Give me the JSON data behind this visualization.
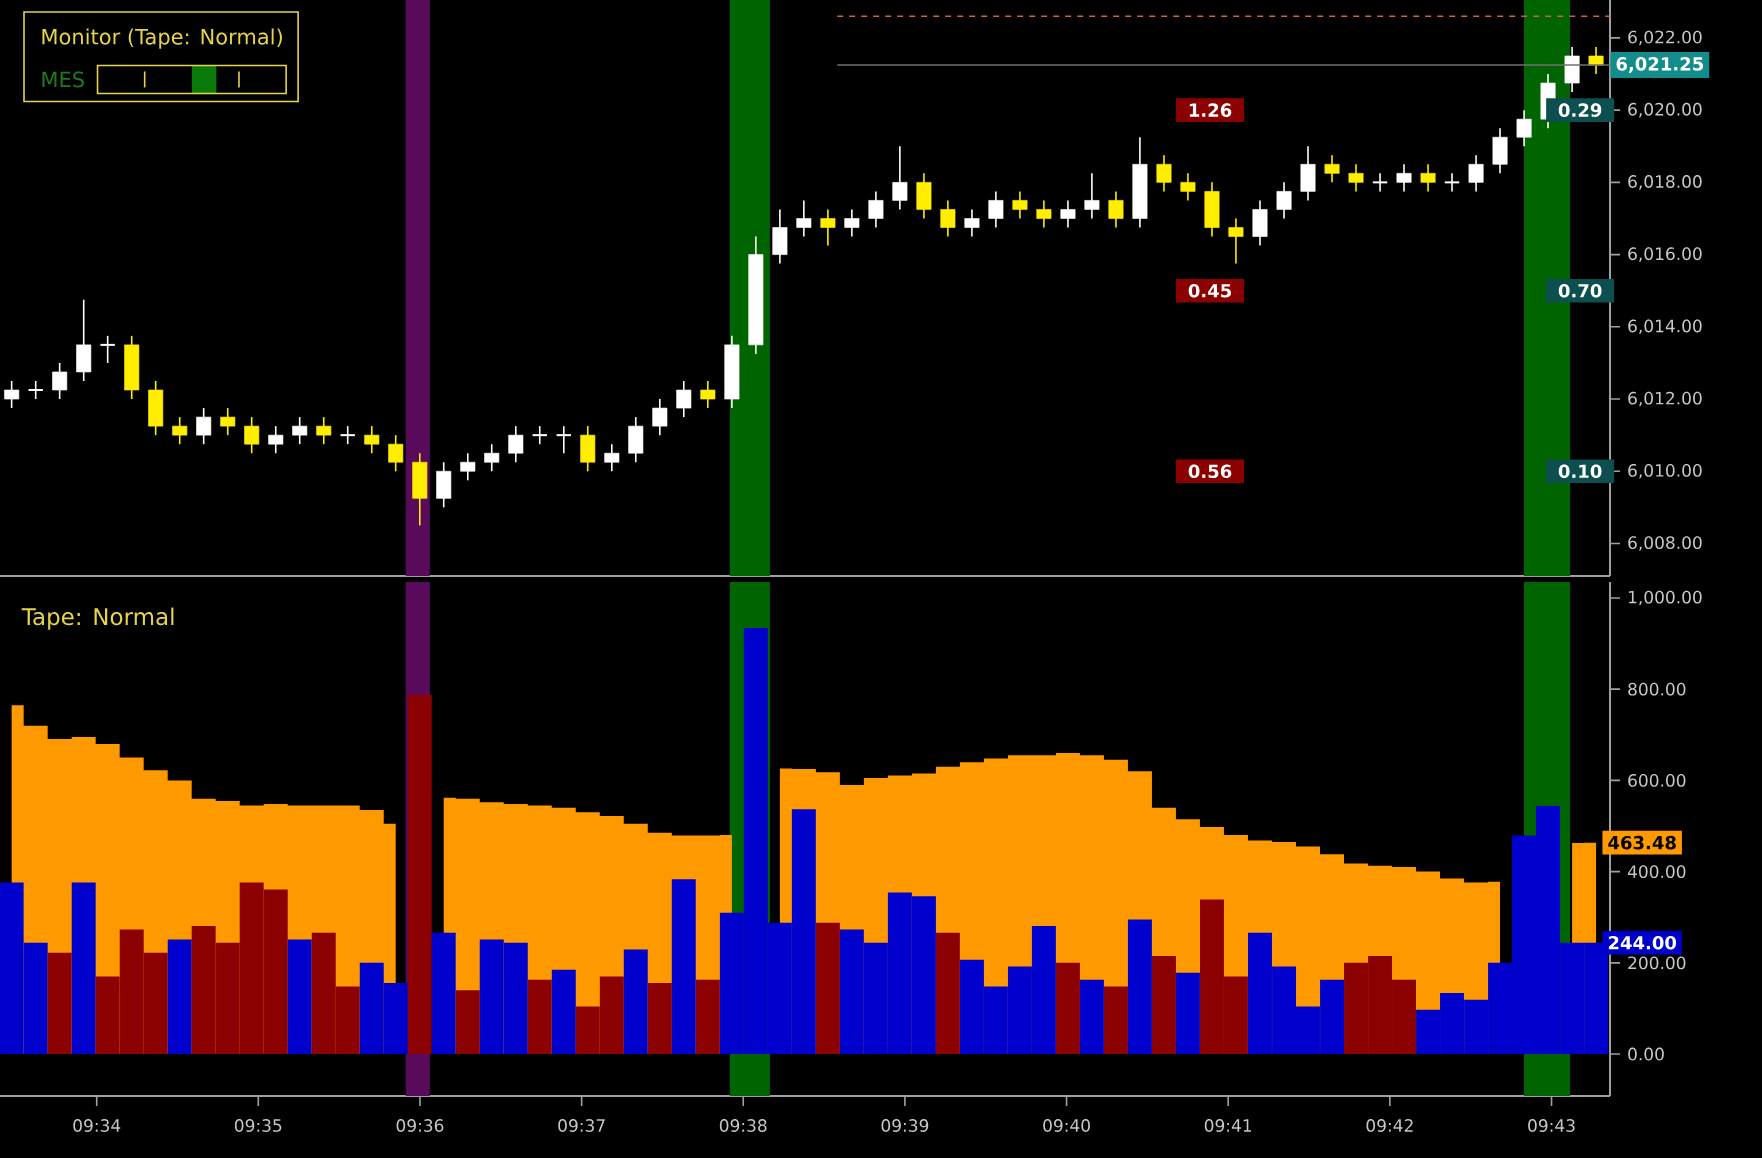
{
  "chart_data": [
    {
      "type": "candlestick",
      "title": "Monitor (Tape: Normal)",
      "x": [
        9.5579,
        9.56038,
        9.56285,
        9.56533,
        9.5678,
        9.57028,
        9.57275,
        9.57523,
        9.5777,
        9.58018,
        9.58265,
        9.58513,
        9.5876,
        9.59008,
        9.59255,
        9.59503,
        9.5975,
        9.59998,
        9.60245,
        9.60493,
        9.6074,
        9.60988,
        9.61235,
        9.61483,
        9.6173,
        9.61978,
        9.62225,
        9.62473,
        9.6272,
        9.62968,
        9.63216,
        9.63463,
        9.63711,
        9.63958,
        9.64206,
        9.64453,
        9.64701,
        9.64948,
        9.65196,
        9.65443,
        9.65691,
        9.65938,
        9.66186,
        9.66433,
        9.66681,
        9.66928,
        9.67176,
        9.67423,
        9.67671,
        9.67918,
        9.68166,
        9.68413,
        9.68661,
        9.68909,
        9.69156,
        9.69404,
        9.69651,
        9.69899,
        9.70146,
        9.70394,
        9.70641,
        9.70889,
        9.71136,
        9.71384,
        9.71631,
        9.71879,
        9.72126
      ],
      "ohlc": [
        [
          6012.0,
          6012.5,
          6011.75,
          6012.25
        ],
        [
          6012.25,
          6012.5,
          6012.0,
          6012.25
        ],
        [
          6012.25,
          6013.0,
          6012.0,
          6012.75
        ],
        [
          6012.75,
          6014.75,
          6012.5,
          6013.5
        ],
        [
          6013.5,
          6013.75,
          6013.0,
          6013.5
        ],
        [
          6013.5,
          6013.75,
          6012.0,
          6012.25
        ],
        [
          6012.25,
          6012.5,
          6011.0,
          6011.25
        ],
        [
          6011.25,
          6011.5,
          6010.75,
          6011.0
        ],
        [
          6011.0,
          6011.75,
          6010.75,
          6011.5
        ],
        [
          6011.5,
          6011.75,
          6011.0,
          6011.25
        ],
        [
          6011.25,
          6011.5,
          6010.5,
          6010.75
        ],
        [
          6010.75,
          6011.25,
          6010.5,
          6011.0
        ],
        [
          6011.0,
          6011.5,
          6010.75,
          6011.25
        ],
        [
          6011.25,
          6011.5,
          6010.75,
          6011.0
        ],
        [
          6011.0,
          6011.25,
          6010.75,
          6011.0
        ],
        [
          6011.0,
          6011.25,
          6010.5,
          6010.75
        ],
        [
          6010.75,
          6011.0,
          6010.0,
          6010.25
        ],
        [
          6010.25,
          6010.5,
          6008.5,
          6009.25
        ],
        [
          6009.25,
          6010.25,
          6009.0,
          6010.0
        ],
        [
          6010.0,
          6010.5,
          6009.75,
          6010.25
        ],
        [
          6010.25,
          6010.75,
          6010.0,
          6010.5
        ],
        [
          6010.5,
          6011.25,
          6010.25,
          6011.0
        ],
        [
          6011.0,
          6011.25,
          6010.75,
          6011.0
        ],
        [
          6011.0,
          6011.25,
          6010.5,
          6011.0
        ],
        [
          6011.0,
          6011.25,
          6010.0,
          6010.25
        ],
        [
          6010.25,
          6010.75,
          6010.0,
          6010.5
        ],
        [
          6010.5,
          6011.5,
          6010.25,
          6011.25
        ],
        [
          6011.25,
          6012.0,
          6011.0,
          6011.75
        ],
        [
          6011.75,
          6012.5,
          6011.5,
          6012.25
        ],
        [
          6012.25,
          6012.5,
          6011.75,
          6012.0
        ],
        [
          6012.0,
          6013.75,
          6011.75,
          6013.5
        ],
        [
          6013.5,
          6016.5,
          6013.25,
          6016.0
        ],
        [
          6016.0,
          6017.25,
          6015.75,
          6016.75
        ],
        [
          6016.75,
          6017.5,
          6016.5,
          6017.0
        ],
        [
          6017.0,
          6017.25,
          6016.25,
          6016.75
        ],
        [
          6016.75,
          6017.25,
          6016.5,
          6017.0
        ],
        [
          6017.0,
          6017.75,
          6016.75,
          6017.5
        ],
        [
          6017.5,
          6019.0,
          6017.25,
          6018.0
        ],
        [
          6018.0,
          6018.25,
          6017.0,
          6017.25
        ],
        [
          6017.25,
          6017.5,
          6016.5,
          6016.75
        ],
        [
          6016.75,
          6017.25,
          6016.5,
          6017.0
        ],
        [
          6017.0,
          6017.75,
          6016.75,
          6017.5
        ],
        [
          6017.5,
          6017.75,
          6017.0,
          6017.25
        ],
        [
          6017.25,
          6017.5,
          6016.75,
          6017.0
        ],
        [
          6017.0,
          6017.5,
          6016.75,
          6017.25
        ],
        [
          6017.25,
          6018.25,
          6017.0,
          6017.5
        ],
        [
          6017.5,
          6017.75,
          6016.75,
          6017.0
        ],
        [
          6017.0,
          6019.25,
          6016.75,
          6018.5
        ],
        [
          6018.5,
          6018.75,
          6017.75,
          6018.0
        ],
        [
          6018.0,
          6018.25,
          6017.5,
          6017.75
        ],
        [
          6017.75,
          6018.0,
          6016.5,
          6016.75
        ],
        [
          6016.75,
          6017.0,
          6015.75,
          6016.5
        ],
        [
          6016.5,
          6017.5,
          6016.25,
          6017.25
        ],
        [
          6017.25,
          6018.0,
          6017.0,
          6017.75
        ],
        [
          6017.75,
          6019.0,
          6017.5,
          6018.5
        ],
        [
          6018.5,
          6018.75,
          6018.0,
          6018.25
        ],
        [
          6018.25,
          6018.5,
          6017.75,
          6018.0
        ],
        [
          6018.0,
          6018.25,
          6017.75,
          6018.0
        ],
        [
          6018.0,
          6018.5,
          6017.75,
          6018.25
        ],
        [
          6018.25,
          6018.5,
          6017.75,
          6018.0
        ],
        [
          6018.0,
          6018.25,
          6017.75,
          6018.0
        ],
        [
          6018.0,
          6018.75,
          6017.75,
          6018.5
        ],
        [
          6018.5,
          6019.5,
          6018.25,
          6019.25
        ],
        [
          6019.25,
          6020.0,
          6019.0,
          6019.75
        ],
        [
          6019.75,
          6021.0,
          6019.5,
          6020.75
        ],
        [
          6020.75,
          6021.75,
          6020.5,
          6021.5
        ],
        [
          6021.5,
          6021.75,
          6021.0,
          6021.25
        ]
      ],
      "colors": [
        "#ffffff",
        "#ffffff",
        "#ffffff",
        "#ffffff",
        "#ffffff",
        "#ffee00",
        "#ffee00",
        "#ffee00",
        "#ffffff",
        "#ffee00",
        "#ffee00",
        "#ffffff",
        "#ffffff",
        "#ffee00",
        "#ffffff",
        "#ffee00",
        "#ffee00",
        "#ffee00",
        "#ffffff",
        "#ffffff",
        "#ffffff",
        "#ffffff",
        "#ffffff",
        "#ffffff",
        "#ffee00",
        "#ffffff",
        "#ffffff",
        "#ffffff",
        "#ffffff",
        "#ffee00",
        "#ffffff",
        "#ffffff",
        "#ffffff",
        "#ffffff",
        "#ffee00",
        "#ffffff",
        "#ffffff",
        "#ffffff",
        "#ffee00",
        "#ffee00",
        "#ffffff",
        "#ffffff",
        "#ffee00",
        "#ffee00",
        "#ffffff",
        "#ffffff",
        "#ffee00",
        "#ffffff",
        "#ffee00",
        "#ffee00",
        "#ffee00",
        "#ffee00",
        "#ffffff",
        "#ffffff",
        "#ffffff",
        "#ffee00",
        "#ffee00",
        "#ffffff",
        "#ffffff",
        "#ffee00",
        "#ffffff",
        "#ffffff",
        "#ffffff",
        "#ffffff",
        "#ffffff",
        "#ffffff",
        "#ffee00"
      ],
      "xlim": [
        9.5567,
        9.7227
      ],
      "ylim": [
        6007.1,
        6023.05
      ],
      "yticks": [
        {
          "value": 6008,
          "label": "6,008.00"
        },
        {
          "value": 6010,
          "label": "6,010.00"
        },
        {
          "value": 6012,
          "label": "6,012.00"
        },
        {
          "value": 6014,
          "label": "6,014.00"
        },
        {
          "value": 6016,
          "label": "6,016.00"
        },
        {
          "value": 6018,
          "label": "6,018.00"
        },
        {
          "value": 6020,
          "label": "6,020.00"
        },
        {
          "value": 6022,
          "label": "6,022.00"
        }
      ],
      "tick_labels": "y",
      "bands": [
        {
          "axis": "x",
          "from": 9.59853,
          "to": 9.60102,
          "color": "#5a0a5a"
        },
        {
          "axis": "x",
          "from": 9.63195,
          "to": 9.63608,
          "color": "#006400"
        },
        {
          "axis": "x",
          "from": 9.71383,
          "to": 9.71858,
          "color": "#006400"
        }
      ],
      "ref_lines": [
        {
          "axis": "y",
          "value": 6022.6,
          "color": "#d06040",
          "line_style": "dashed"
        },
        {
          "axis": "y",
          "value": 6021.25,
          "label": "6,021.25",
          "color": "#707070",
          "line_style": "solid"
        }
      ],
      "annotations": [
        "MES",
        {
          "text": "1.26",
          "x": 9.68146,
          "y": 6020.0
        },
        {
          "text": "0.29",
          "x": 9.71962,
          "y": 6020.0
        },
        {
          "text": "0.45",
          "x": 9.68146,
          "y": 6015.0
        },
        {
          "text": "0.70",
          "x": 9.71962,
          "y": 6015.0
        },
        {
          "text": "0.56",
          "x": 9.68146,
          "y": 6010.0
        },
        {
          "text": "0.10",
          "x": 9.71962,
          "y": 6010.0
        }
      ]
    },
    {
      "type": "bar",
      "title": "Tape: Normal",
      "x": [
        9.5579,
        9.56038,
        9.56285,
        9.56533,
        9.5678,
        9.57028,
        9.57275,
        9.57523,
        9.5777,
        9.58018,
        9.58265,
        9.58513,
        9.5876,
        9.59008,
        9.59255,
        9.59503,
        9.5975,
        9.59998,
        9.60245,
        9.60493,
        9.6074,
        9.60988,
        9.61235,
        9.61483,
        9.6173,
        9.61978,
        9.62225,
        9.62473,
        9.6272,
        9.62968,
        9.63216,
        9.63463,
        9.63711,
        9.63958,
        9.64206,
        9.64453,
        9.64701,
        9.64948,
        9.65196,
        9.65443,
        9.65691,
        9.65938,
        9.66186,
        9.66433,
        9.66681,
        9.66928,
        9.67176,
        9.67423,
        9.67671,
        9.67918,
        9.68166,
        9.68413,
        9.68661,
        9.68909,
        9.69156,
        9.69404,
        9.69651,
        9.69899,
        9.70146,
        9.70394,
        9.70641,
        9.70889,
        9.71136,
        9.71384,
        9.71631,
        9.71879,
        9.72126
      ],
      "series": [
        {
          "type": "area",
          "color": "#ff9900",
          "values": [
            765,
            720,
            691,
            695,
            680,
            650,
            622,
            600,
            560,
            555,
            545,
            548,
            545,
            545,
            545,
            535,
            505,
            null,
            562,
            560,
            552,
            548,
            545,
            540,
            530,
            522,
            505,
            485,
            479,
            479,
            480,
            null,
            626,
            625,
            618,
            590,
            605,
            611,
            615,
            630,
            640,
            648,
            655,
            655,
            660,
            655,
            645,
            620,
            540,
            515,
            498,
            480,
            468,
            465,
            455,
            438,
            418,
            413,
            410,
            400,
            385,
            376,
            378,
            null,
            null,
            463,
            463.48
          ]
        },
        {
          "type": "bar",
          "values": [
            376,
            244,
            222,
            376,
            170,
            273,
            222,
            251,
            281,
            244,
            376,
            361,
            251,
            266,
            148,
            200,
            156,
            787,
            266,
            140,
            251,
            244,
            163,
            185,
            104,
            170,
            229,
            156,
            383,
            163,
            310,
            934,
            288,
            537,
            288,
            273,
            244,
            354,
            346,
            266,
            207,
            148,
            192,
            281,
            200,
            163,
            148,
            295,
            215,
            178,
            339,
            170,
            266,
            192,
            104,
            163,
            200,
            215,
            163,
            97,
            134,
            119,
            200,
            479,
            544,
            244,
            244
          ],
          "colors": [
            "#0000cc",
            "#0000cc",
            "#8b0000",
            "#0000cc",
            "#8b0000",
            "#8b0000",
            "#8b0000",
            "#0000cc",
            "#8b0000",
            "#8b0000",
            "#8b0000",
            "#8b0000",
            "#0000cc",
            "#8b0000",
            "#8b0000",
            "#0000cc",
            "#0000cc",
            "#8b0000",
            "#0000cc",
            "#8b0000",
            "#0000cc",
            "#0000cc",
            "#8b0000",
            "#0000cc",
            "#8b0000",
            "#8b0000",
            "#0000cc",
            "#8b0000",
            "#0000cc",
            "#8b0000",
            "#0000cc",
            "#0000cc",
            "#0000cc",
            "#0000cc",
            "#8b0000",
            "#0000cc",
            "#0000cc",
            "#0000cc",
            "#0000cc",
            "#8b0000",
            "#0000cc",
            "#0000cc",
            "#0000cc",
            "#0000cc",
            "#8b0000",
            "#0000cc",
            "#8b0000",
            "#0000cc",
            "#8b0000",
            "#0000cc",
            "#8b0000",
            "#8b0000",
            "#0000cc",
            "#0000cc",
            "#0000cc",
            "#0000cc",
            "#8b0000",
            "#8b0000",
            "#8b0000",
            "#0000cc",
            "#0000cc",
            "#0000cc",
            "#0000cc",
            "#0000cc",
            "#0000cc",
            "#0000cc",
            "#0000cc"
          ]
        }
      ],
      "xlim": [
        9.5567,
        9.7227
      ],
      "ylim": [
        -92,
        1035
      ],
      "xticks": [
        {
          "value": 9.56667,
          "label": "09:34"
        },
        {
          "value": 9.58333,
          "label": "09:35"
        },
        {
          "value": 9.6,
          "label": "09:36"
        },
        {
          "value": 9.61667,
          "label": "09:37"
        },
        {
          "value": 9.63333,
          "label": "09:38"
        },
        {
          "value": 9.65,
          "label": "09:39"
        },
        {
          "value": 9.66667,
          "label": "09:40"
        },
        {
          "value": 9.68333,
          "label": "09:41"
        },
        {
          "value": 9.7,
          "label": "09:42"
        },
        {
          "value": 9.71667,
          "label": "09:43"
        }
      ],
      "yticks": [
        {
          "value": 0,
          "label": "0.00"
        },
        {
          "value": 200,
          "label": "200.00"
        },
        {
          "value": 400,
          "label": "400.00"
        },
        {
          "value": 600,
          "label": "600.00"
        },
        {
          "value": 800,
          "label": "800.00"
        },
        {
          "value": 1000,
          "label": "1,000.00"
        }
      ],
      "bands": [
        {
          "axis": "x",
          "from": 9.59853,
          "to": 9.60102,
          "color": "#5a0a5a"
        },
        {
          "axis": "x",
          "from": 9.63195,
          "to": 9.63608,
          "color": "#006400"
        },
        {
          "axis": "x",
          "from": 9.71383,
          "to": 9.71858,
          "color": "#006400"
        }
      ],
      "annotations": [
        {
          "text": "463.48",
          "x": 9.72126,
          "y": 463.48
        },
        {
          "text": "244.00",
          "x": 9.72126,
          "y": 244
        }
      ]
    }
  ]
}
